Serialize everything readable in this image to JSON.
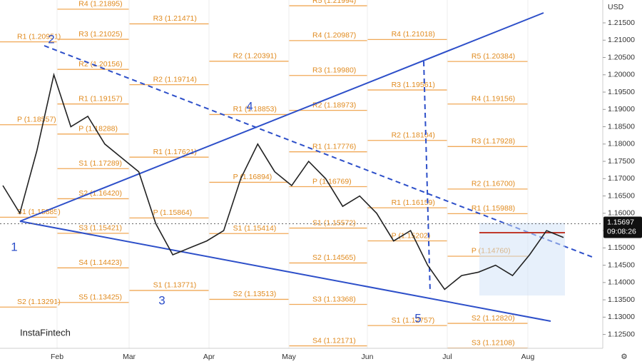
{
  "chart_data": {
    "type": "line",
    "currency": "USD",
    "values": [
      1.168,
      1.16,
      1.178,
      1.2,
      1.185,
      1.188,
      1.18,
      1.176,
      1.172,
      1.157,
      1.148,
      1.15,
      1.152,
      1.155,
      1.17,
      1.18,
      1.172,
      1.168,
      1.175,
      1.17,
      1.162,
      1.165,
      1.16,
      1.152,
      1.155,
      1.145,
      1.138,
      1.142,
      1.143,
      1.145,
      1.142,
      1.148,
      1.155,
      1.153
    ],
    "color": "#222222",
    "ylim": [
      1.121,
      1.2216
    ],
    "yticks": [
      {
        "value": 1.125,
        "label": "1.12500"
      },
      {
        "value": 1.13,
        "label": "1.13000"
      },
      {
        "value": 1.135,
        "label": "1.13500"
      },
      {
        "value": 1.14,
        "label": "1.14000"
      },
      {
        "value": 1.145,
        "label": "1.14500"
      },
      {
        "value": 1.15,
        "label": "1.15000"
      },
      {
        "value": 1.155,
        "label": "1.15500"
      },
      {
        "value": 1.16,
        "label": "1.16000"
      },
      {
        "value": 1.165,
        "label": "1.16500"
      },
      {
        "value": 1.17,
        "label": "1.17000"
      },
      {
        "value": 1.175,
        "label": "1.17500"
      },
      {
        "value": 1.18,
        "label": "1.18000"
      },
      {
        "value": 1.185,
        "label": "1.18500"
      },
      {
        "value": 1.19,
        "label": "1.19000"
      },
      {
        "value": 1.195,
        "label": "1.19500"
      },
      {
        "value": 1.2,
        "label": "1.20000"
      },
      {
        "value": 1.205,
        "label": "1.20500"
      },
      {
        "value": 1.21,
        "label": "1.21000"
      },
      {
        "value": 1.215,
        "label": "1.21500"
      }
    ],
    "x_labels": [
      "Feb",
      "Mar",
      "Apr",
      "May",
      "Jun",
      "Jul",
      "Aug"
    ],
    "current_price": {
      "value": 1.15697,
      "label": "1.15697"
    },
    "countdown": "09:08:26",
    "pivots": [
      [
        {
          "label": "R1 (1.20951)",
          "value": 1.20951
        },
        {
          "label": "P (1.18557)",
          "value": 1.18557
        },
        {
          "label": "S1 (1.15885)",
          "value": 1.15885
        },
        {
          "label": "S2 (1.13291)",
          "value": 1.13291
        }
      ],
      [
        {
          "label": "R4 (1.21895)",
          "value": 1.21895
        },
        {
          "label": "R3 (1.21025)",
          "value": 1.21025
        },
        {
          "label": "R2 (1.20156)",
          "value": 1.20156
        },
        {
          "label": "R1 (1.19157)",
          "value": 1.19157
        },
        {
          "label": "P (1.18288)",
          "value": 1.18288
        },
        {
          "label": "S1 (1.17289)",
          "value": 1.17289
        },
        {
          "label": "S2 (1.16420)",
          "value": 1.1642
        },
        {
          "label": "S3 (1.15421)",
          "value": 1.15421
        },
        {
          "label": "S4 (1.14423)",
          "value": 1.14423
        },
        {
          "label": "S5 (1.13425)",
          "value": 1.13425
        }
      ],
      [
        {
          "label": "R3 (1.21471)",
          "value": 1.21471
        },
        {
          "label": "R2 (1.19714)",
          "value": 1.19714
        },
        {
          "label": "R1 (1.17621)",
          "value": 1.17621
        },
        {
          "label": "P (1.15864)",
          "value": 1.15864
        },
        {
          "label": "S1 (1.13771)",
          "value": 1.13771
        }
      ],
      [
        {
          "label": "R2 (1.20391)",
          "value": 1.20391
        },
        {
          "label": "R1 (1.18853)",
          "value": 1.18853
        },
        {
          "label": "P (1.16894)",
          "value": 1.16894
        },
        {
          "label": "S1 (1.15414)",
          "value": 1.15414
        },
        {
          "label": "S2 (1.13513)",
          "value": 1.13513
        }
      ],
      [
        {
          "label": "R5 (1.21994)",
          "value": 1.21994
        },
        {
          "label": "R4 (1.20987)",
          "value": 1.20987
        },
        {
          "label": "R3 (1.19980)",
          "value": 1.1998
        },
        {
          "label": "R2 (1.18973)",
          "value": 1.18973
        },
        {
          "label": "R1 (1.17776)",
          "value": 1.17776
        },
        {
          "label": "P (1.16769)",
          "value": 1.16769
        },
        {
          "label": "S1 (1.15572)",
          "value": 1.15572
        },
        {
          "label": "S2 (1.14565)",
          "value": 1.14565
        },
        {
          "label": "S3 (1.13368)",
          "value": 1.13368
        },
        {
          "label": "S4 (1.12171)",
          "value": 1.12171
        }
      ],
      [
        {
          "label": "R4 (1.21018)",
          "value": 1.21018
        },
        {
          "label": "R3 (1.19561)",
          "value": 1.19561
        },
        {
          "label": "R2 (1.18104)",
          "value": 1.18104
        },
        {
          "label": "R1 (1.16159)",
          "value": 1.16159
        },
        {
          "label": "P (1.15202)",
          "value": 1.15202
        },
        {
          "label": "S1 (1.12757)",
          "value": 1.12757
        }
      ],
      [
        {
          "label": "R5 (1.20384)",
          "value": 1.20384
        },
        {
          "label": "R4 (1.19156)",
          "value": 1.19156
        },
        {
          "label": "R3 (1.17928)",
          "value": 1.17928
        },
        {
          "label": "R2 (1.16700)",
          "value": 1.167
        },
        {
          "label": "R1 (1.15988)",
          "value": 1.15988
        },
        {
          "label": "P (1.14760)",
          "value": 1.1476
        },
        {
          "label": "S2 (1.12820)",
          "value": 1.1282
        },
        {
          "label": "S3 (1.12108)",
          "value": 1.12108
        }
      ]
    ],
    "wave_labels": [
      "1",
      "2",
      "3",
      "4",
      "5"
    ],
    "logo": "InstaFintech"
  }
}
